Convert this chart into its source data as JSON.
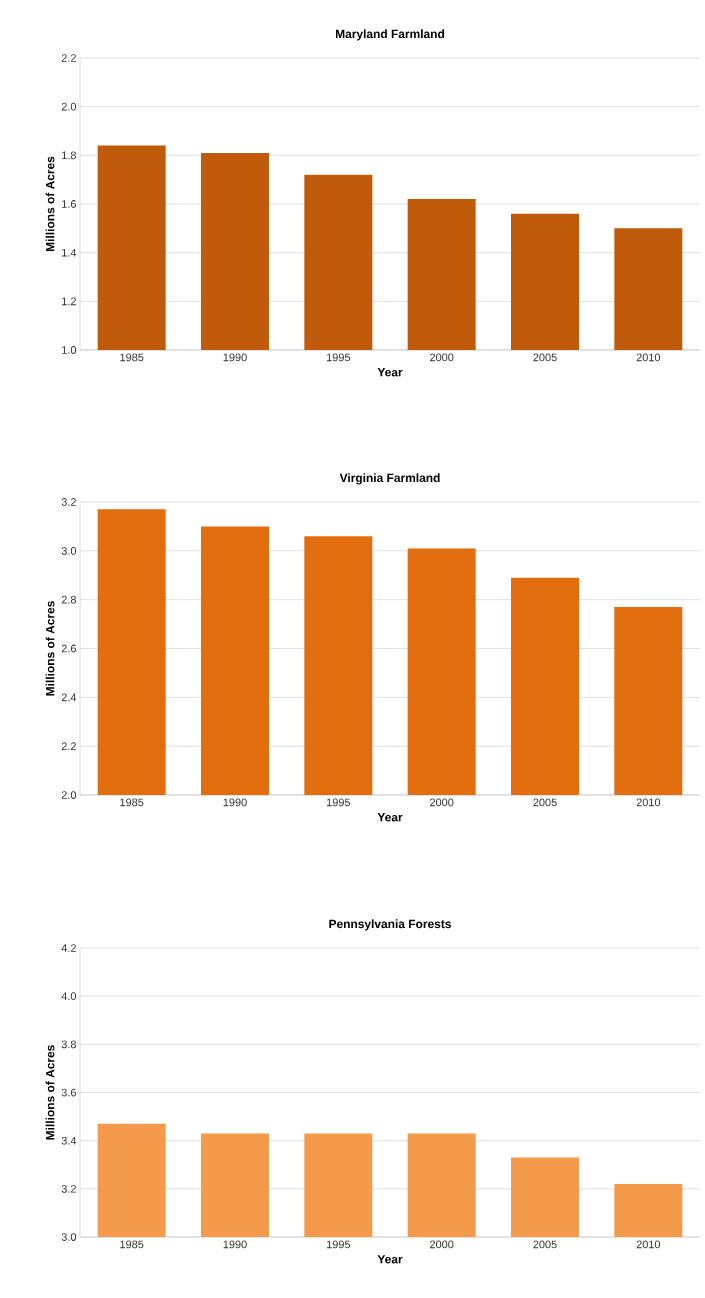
{
  "chart_data": [
    {
      "type": "bar",
      "title": "Maryland Farmland",
      "xlabel": "Year",
      "ylabel": "Millions  of Acres",
      "categories": [
        "1985",
        "1990",
        "1995",
        "2000",
        "2005",
        "2010"
      ],
      "values": [
        1.84,
        1.81,
        1.72,
        1.62,
        1.56,
        1.5
      ],
      "color": "#bf5b0a",
      "ylim": [
        1.0,
        2.2
      ],
      "yticks": [
        {
          "value": 1.0,
          "label": "1.0"
        },
        {
          "value": 1.2,
          "label": "1.2"
        },
        {
          "value": 1.4,
          "label": "1.4"
        },
        {
          "value": 1.6,
          "label": "1.6"
        },
        {
          "value": 1.8,
          "label": "1.8"
        },
        {
          "value": 2.0,
          "label": "2.0"
        },
        {
          "value": 2.2,
          "label": "2.2"
        }
      ],
      "grid": "y"
    },
    {
      "type": "bar",
      "title": "Virginia Farmland",
      "xlabel": "Year",
      "ylabel": "Millions  of Acres",
      "categories": [
        "1985",
        "1990",
        "1995",
        "2000",
        "2005",
        "2010"
      ],
      "values": [
        3.17,
        3.1,
        3.06,
        3.01,
        2.89,
        2.77
      ],
      "color": "#e26d0e",
      "ylim": [
        2.0,
        3.2
      ],
      "yticks": [
        {
          "value": 2.0,
          "label": "2.0"
        },
        {
          "value": 2.2,
          "label": "2.2"
        },
        {
          "value": 2.4,
          "label": "2.4"
        },
        {
          "value": 2.6,
          "label": "2.6"
        },
        {
          "value": 2.8,
          "label": "2.8"
        },
        {
          "value": 3.0,
          "label": "3.0"
        },
        {
          "value": 3.2,
          "label": "3.2"
        }
      ],
      "grid": "y"
    },
    {
      "type": "bar",
      "title": "Pennsylvania Forests",
      "xlabel": "Year",
      "ylabel": "Millions  of Acres",
      "categories": [
        "1985",
        "1990",
        "1995",
        "2000",
        "2005",
        "2010"
      ],
      "values": [
        3.47,
        3.43,
        3.43,
        3.43,
        3.33,
        3.22
      ],
      "color": "#f49a4b",
      "ylim": [
        3.0,
        4.2
      ],
      "yticks": [
        {
          "value": 3.0,
          "label": "3.0"
        },
        {
          "value": 3.2,
          "label": "3.2"
        },
        {
          "value": 3.4,
          "label": "3.4"
        },
        {
          "value": 3.6,
          "label": "3.6"
        },
        {
          "value": 3.8,
          "label": "3.8"
        },
        {
          "value": 4.0,
          "label": "4.0"
        },
        {
          "value": 4.2,
          "label": "4.2"
        }
      ],
      "grid": "y"
    }
  ]
}
